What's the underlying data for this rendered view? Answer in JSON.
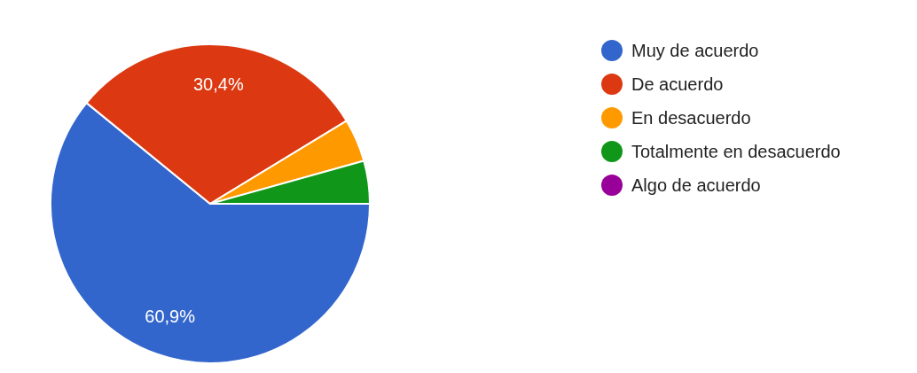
{
  "chart_data": {
    "type": "pie",
    "categories": [
      "Muy de acuerdo",
      "De acuerdo",
      "En desacuerdo",
      "Totalmente en desacuerdo",
      "Algo de acuerdo"
    ],
    "values": [
      60.9,
      30.4,
      4.35,
      4.35,
      0
    ],
    "colors": [
      "#3366cc",
      "#dc3912",
      "#ff9900",
      "#109618",
      "#990099"
    ],
    "value_labels": [
      "60,9%",
      "30,4%",
      null,
      null,
      null
    ],
    "legend": "top right"
  }
}
